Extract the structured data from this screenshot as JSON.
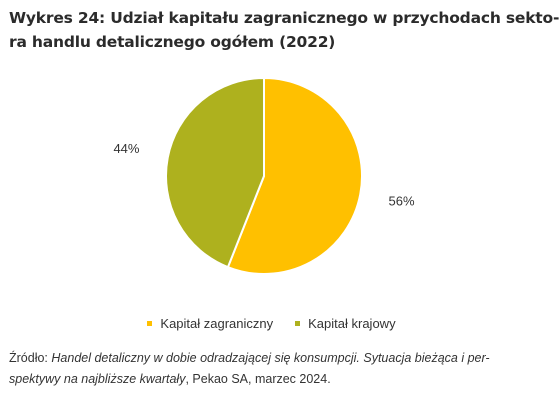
{
  "header": {
    "title_line1": "Wykres 24: Udział kapitału zagranicznego w przychodach sekto-",
    "title_line2": "ra handlu detalicznego ogółem (2022)"
  },
  "chart_data": {
    "type": "pie",
    "title": "Wykres 24: Udział kapitału zagranicznego w przychodach sektora handlu detalicznego ogółem (2022)",
    "series": [
      {
        "name": "Kapitał zagraniczny",
        "value": 56,
        "label": "56%",
        "color": "#FFC000"
      },
      {
        "name": "Kapitał krajowy",
        "value": 44,
        "label": "44%",
        "color": "#AEB11E"
      }
    ],
    "legend_position": "bottom"
  },
  "source": {
    "prefix": "Źródło: ",
    "italic_line1": "Handel detaliczny w dobie odradzającej się konsumpcji. Sytuacja bieżąca i per-",
    "italic_line2": "spektywy na najbliższe kwartały",
    "suffix": ", Pekao SA, marzec 2024."
  }
}
